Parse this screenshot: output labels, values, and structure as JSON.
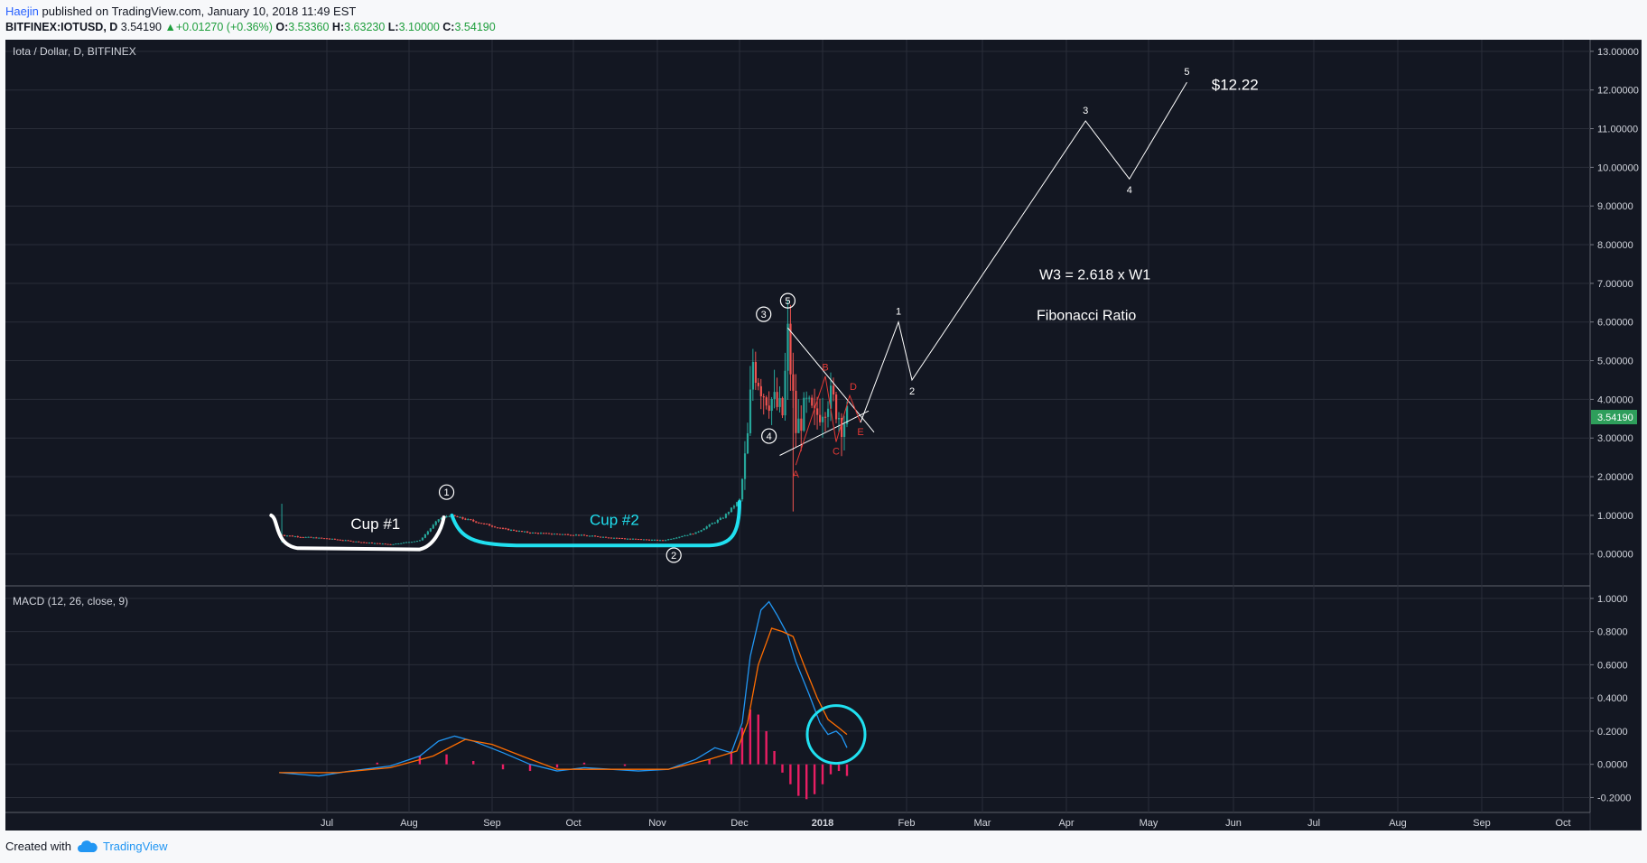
{
  "header": {
    "author": "Haejin",
    "published_text": "published on TradingView.com, January 10, 2018 11:49 EST",
    "symbol": "BITFINEX:IOTUSD, D",
    "price": "3.54190",
    "change": "+0.01270 (+0.36%)",
    "open_label": "O:",
    "open": "3.53360",
    "high_label": "H:",
    "high": "3.63230",
    "low_label": "L:",
    "low": "3.10000",
    "close_label": "C:",
    "close": "3.54190"
  },
  "footer": {
    "created_with": "Created with",
    "brand": "TradingView"
  },
  "colors": {
    "background": "#131722",
    "grid": "#2a2e39",
    "up": "#26a69a",
    "down": "#ef5350",
    "macd": "#2196f3",
    "signal": "#ff6d00",
    "histogram": "#e91e63",
    "cup2": "#20e0f0",
    "price_label": "#2e9e5b",
    "wave_red": "#e53935"
  },
  "chart_data": [
    {
      "type": "candlestick",
      "title": "Iota / Dollar, D, BITFINEX",
      "x_tick_labels": [
        "Jul",
        "Aug",
        "Sep",
        "Oct",
        "Nov",
        "Dec",
        "2018",
        "Feb",
        "Mar",
        "Apr",
        "May",
        "Jun",
        "Jul",
        "Aug",
        "Sep",
        "Oct"
      ],
      "y_tick_labels": [
        "13.00000",
        "12.00000",
        "11.00000",
        "10.00000",
        "9.00000",
        "8.00000",
        "7.00000",
        "6.00000",
        "5.00000",
        "4.00000",
        "3.00000",
        "2.00000",
        "1.00000",
        "0.00000"
      ],
      "ylim": [
        -0.8,
        13.3
      ],
      "current_price_label": "3.54190",
      "price_path": [
        {
          "date": "2017-06-13",
          "value": 0.5
        },
        {
          "date": "2017-06-20",
          "value": 0.45
        },
        {
          "date": "2017-07-01",
          "value": 0.4
        },
        {
          "date": "2017-07-15",
          "value": 0.3
        },
        {
          "date": "2017-07-25",
          "value": 0.25
        },
        {
          "date": "2017-08-05",
          "value": 0.35
        },
        {
          "date": "2017-08-12",
          "value": 0.9
        },
        {
          "date": "2017-08-16",
          "value": 1.0
        },
        {
          "date": "2017-08-25",
          "value": 0.85
        },
        {
          "date": "2017-09-05",
          "value": 0.65
        },
        {
          "date": "2017-09-15",
          "value": 0.55
        },
        {
          "date": "2017-10-01",
          "value": 0.5
        },
        {
          "date": "2017-10-20",
          "value": 0.4
        },
        {
          "date": "2017-11-03",
          "value": 0.35
        },
        {
          "date": "2017-11-15",
          "value": 0.55
        },
        {
          "date": "2017-11-25",
          "value": 0.95
        },
        {
          "date": "2017-12-01",
          "value": 1.4
        },
        {
          "date": "2017-12-04",
          "value": 3.0
        },
        {
          "date": "2017-12-06",
          "value": 5.0
        },
        {
          "date": "2017-12-10",
          "value": 4.2
        },
        {
          "date": "2017-12-13",
          "value": 4.0
        },
        {
          "date": "2017-12-17",
          "value": 3.6
        },
        {
          "date": "2017-12-19",
          "value": 5.6
        },
        {
          "date": "2017-12-22",
          "value": 3.2
        },
        {
          "date": "2017-12-26",
          "value": 3.8
        },
        {
          "date": "2017-12-29",
          "value": 3.5
        },
        {
          "date": "2018-01-03",
          "value": 4.1
        },
        {
          "date": "2018-01-06",
          "value": 3.8
        },
        {
          "date": "2018-01-08",
          "value": 3.4
        },
        {
          "date": "2018-01-10",
          "value": 3.54
        }
      ],
      "annotations": [
        {
          "text": "Cup #1",
          "color": "#ffffff"
        },
        {
          "text": "Cup #2",
          "color": "#20e0f0"
        },
        {
          "text": "W3 = 2.618 x W1",
          "color": "#ffffff"
        },
        {
          "text": "Fibonacci Ratio",
          "color": "#ffffff"
        },
        {
          "text": "$12.22",
          "color": "#ffffff"
        }
      ],
      "elliott_circled": [
        {
          "label": "1",
          "date": "2017-08-15",
          "value": 1.6
        },
        {
          "label": "2",
          "date": "2017-11-07",
          "value": -0.03
        },
        {
          "label": "3",
          "date": "2017-12-10",
          "value": 6.2
        },
        {
          "label": "4",
          "date": "2017-12-12",
          "value": 3.05
        },
        {
          "label": "5",
          "date": "2017-12-19",
          "value": 6.55
        }
      ],
      "abcde": [
        {
          "label": "A",
          "date": "2017-12-22",
          "value": 2.3
        },
        {
          "label": "B",
          "date": "2018-01-02",
          "value": 4.6
        },
        {
          "label": "C",
          "date": "2018-01-06",
          "value": 2.9
        },
        {
          "label": "D",
          "date": "2018-01-11",
          "value": 4.1
        },
        {
          "label": "E",
          "date": "2018-01-15",
          "value": 3.4
        }
      ],
      "projection": [
        {
          "label": "",
          "date": "2018-01-15",
          "value": 3.4
        },
        {
          "label": "1",
          "date": "2018-01-29",
          "value": 6.0
        },
        {
          "label": "2",
          "date": "2018-02-03",
          "value": 4.5
        },
        {
          "label": "3",
          "date": "2018-04-08",
          "value": 11.2
        },
        {
          "label": "4",
          "date": "2018-04-24",
          "value": 9.7
        },
        {
          "label": "5",
          "date": "2018-05-15",
          "value": 12.2
        }
      ],
      "triangle": {
        "upper": [
          {
            "date": "2017-12-19",
            "value": 5.85
          },
          {
            "date": "2018-01-20",
            "value": 3.15
          }
        ],
        "lower": [
          {
            "date": "2017-12-16",
            "value": 2.55
          },
          {
            "date": "2018-01-18",
            "value": 3.7
          }
        ]
      }
    },
    {
      "type": "line",
      "title": "MACD (12, 26, close, 9)",
      "y_tick_labels": [
        "1.0000",
        "0.8000",
        "0.6000",
        "0.4000",
        "0.2000",
        "0.0000",
        "-0.2000"
      ],
      "ylim": [
        -0.29,
        1.07
      ],
      "series": [
        {
          "name": "MACD",
          "color": "#2196f3",
          "points": [
            {
              "date": "2017-06-13",
              "value": -0.05
            },
            {
              "date": "2017-06-28",
              "value": -0.07
            },
            {
              "date": "2017-07-10",
              "value": -0.04
            },
            {
              "date": "2017-07-25",
              "value": -0.01
            },
            {
              "date": "2017-08-05",
              "value": 0.05
            },
            {
              "date": "2017-08-12",
              "value": 0.14
            },
            {
              "date": "2017-08-18",
              "value": 0.17
            },
            {
              "date": "2017-08-25",
              "value": 0.14
            },
            {
              "date": "2017-09-05",
              "value": 0.07
            },
            {
              "date": "2017-09-15",
              "value": 0.0
            },
            {
              "date": "2017-09-25",
              "value": -0.04
            },
            {
              "date": "2017-10-05",
              "value": -0.02
            },
            {
              "date": "2017-10-15",
              "value": -0.03
            },
            {
              "date": "2017-10-25",
              "value": -0.04
            },
            {
              "date": "2017-11-05",
              "value": -0.03
            },
            {
              "date": "2017-11-15",
              "value": 0.03
            },
            {
              "date": "2017-11-22",
              "value": 0.1
            },
            {
              "date": "2017-11-28",
              "value": 0.07
            },
            {
              "date": "2017-12-02",
              "value": 0.25
            },
            {
              "date": "2017-12-05",
              "value": 0.65
            },
            {
              "date": "2017-12-09",
              "value": 0.93
            },
            {
              "date": "2017-12-12",
              "value": 0.98
            },
            {
              "date": "2017-12-15",
              "value": 0.9
            },
            {
              "date": "2017-12-19",
              "value": 0.78
            },
            {
              "date": "2017-12-22",
              "value": 0.62
            },
            {
              "date": "2017-12-27",
              "value": 0.42
            },
            {
              "date": "2017-12-31",
              "value": 0.25
            },
            {
              "date": "2018-01-03",
              "value": 0.18
            },
            {
              "date": "2018-01-06",
              "value": 0.2
            },
            {
              "date": "2018-01-08",
              "value": 0.17
            },
            {
              "date": "2018-01-10",
              "value": 0.1
            }
          ]
        },
        {
          "name": "Signal",
          "color": "#ff6d00",
          "points": [
            {
              "date": "2017-06-13",
              "value": -0.05
            },
            {
              "date": "2017-07-05",
              "value": -0.05
            },
            {
              "date": "2017-07-25",
              "value": -0.02
            },
            {
              "date": "2017-08-10",
              "value": 0.05
            },
            {
              "date": "2017-08-22",
              "value": 0.15
            },
            {
              "date": "2017-09-01",
              "value": 0.12
            },
            {
              "date": "2017-09-12",
              "value": 0.05
            },
            {
              "date": "2017-09-25",
              "value": -0.03
            },
            {
              "date": "2017-10-15",
              "value": -0.03
            },
            {
              "date": "2017-11-05",
              "value": -0.03
            },
            {
              "date": "2017-11-20",
              "value": 0.03
            },
            {
              "date": "2017-11-30",
              "value": 0.08
            },
            {
              "date": "2017-12-04",
              "value": 0.25
            },
            {
              "date": "2017-12-08",
              "value": 0.6
            },
            {
              "date": "2017-12-13",
              "value": 0.82
            },
            {
              "date": "2017-12-17",
              "value": 0.8
            },
            {
              "date": "2017-12-21",
              "value": 0.77
            },
            {
              "date": "2017-12-25",
              "value": 0.6
            },
            {
              "date": "2017-12-30",
              "value": 0.4
            },
            {
              "date": "2018-01-03",
              "value": 0.27
            },
            {
              "date": "2018-01-07",
              "value": 0.22
            },
            {
              "date": "2018-01-10",
              "value": 0.18
            }
          ]
        }
      ],
      "histogram": [
        {
          "date": "2017-07-20",
          "value": 0.01
        },
        {
          "date": "2017-08-05",
          "value": 0.05
        },
        {
          "date": "2017-08-15",
          "value": 0.06
        },
        {
          "date": "2017-08-25",
          "value": 0.02
        },
        {
          "date": "2017-09-05",
          "value": -0.03
        },
        {
          "date": "2017-09-15",
          "value": -0.04
        },
        {
          "date": "2017-09-25",
          "value": -0.02
        },
        {
          "date": "2017-10-05",
          "value": 0.01
        },
        {
          "date": "2017-10-20",
          "value": -0.01
        },
        {
          "date": "2017-11-10",
          "value": 0.0
        },
        {
          "date": "2017-11-20",
          "value": 0.03
        },
        {
          "date": "2017-11-28",
          "value": 0.08
        },
        {
          "date": "2017-12-02",
          "value": 0.22
        },
        {
          "date": "2017-12-05",
          "value": 0.33
        },
        {
          "date": "2017-12-08",
          "value": 0.3
        },
        {
          "date": "2017-12-11",
          "value": 0.2
        },
        {
          "date": "2017-12-14",
          "value": 0.08
        },
        {
          "date": "2017-12-17",
          "value": -0.05
        },
        {
          "date": "2017-12-20",
          "value": -0.12
        },
        {
          "date": "2017-12-23",
          "value": -0.19
        },
        {
          "date": "2017-12-26",
          "value": -0.21
        },
        {
          "date": "2017-12-29",
          "value": -0.18
        },
        {
          "date": "2018-01-01",
          "value": -0.12
        },
        {
          "date": "2018-01-04",
          "value": -0.06
        },
        {
          "date": "2018-01-07",
          "value": -0.04
        },
        {
          "date": "2018-01-10",
          "value": -0.07
        }
      ]
    }
  ]
}
